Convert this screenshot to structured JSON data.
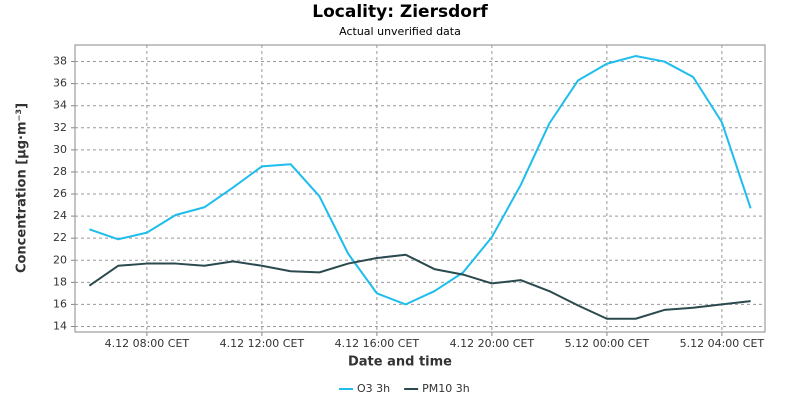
{
  "chart_data": {
    "type": "line",
    "title": "Locality: Ziersdorf",
    "subtitle": "Actual unverified data",
    "x_label": "Date and time",
    "y_label": "Concentration [µg·m⁻³]",
    "x": [
      6,
      7,
      8,
      9,
      10,
      11,
      12,
      13,
      14,
      15,
      16,
      17,
      18,
      19,
      20,
      21,
      22,
      23,
      24,
      25,
      26,
      27,
      28,
      29
    ],
    "xlim": [
      5.5,
      29.5
    ],
    "xticks": [
      {
        "value": 8,
        "label": "4.12 08:00 CET"
      },
      {
        "value": 12,
        "label": "4.12 12:00 CET"
      },
      {
        "value": 16,
        "label": "4.12 16:00 CET"
      },
      {
        "value": 20,
        "label": "4.12 20:00 CET"
      },
      {
        "value": 24,
        "label": "5.12 00:00 CET"
      },
      {
        "value": 28,
        "label": "5.12 04:00 CET"
      }
    ],
    "ylim": [
      13.5,
      39.5
    ],
    "yticks": [
      14,
      16,
      18,
      20,
      22,
      24,
      26,
      28,
      30,
      32,
      34,
      36,
      38
    ],
    "grid": true,
    "series": [
      {
        "name": "O3 3h",
        "color": "#1ebdec",
        "values": [
          22.8,
          21.9,
          22.5,
          24.1,
          24.8,
          26.6,
          28.5,
          28.7,
          25.8,
          20.6,
          17.0,
          16.0,
          17.2,
          18.9,
          22.1,
          26.8,
          32.4,
          36.3,
          37.8,
          38.5,
          38.0,
          36.6,
          32.5,
          24.7
        ]
      },
      {
        "name": "PM10 3h",
        "color": "#2b4a4f",
        "values": [
          17.7,
          19.5,
          19.7,
          19.7,
          19.5,
          19.9,
          19.5,
          19.0,
          18.9,
          19.7,
          20.2,
          20.5,
          19.2,
          18.7,
          17.9,
          18.2,
          17.2,
          15.9,
          14.7,
          14.7,
          15.5,
          15.7,
          16.0,
          16.3
        ]
      }
    ]
  }
}
